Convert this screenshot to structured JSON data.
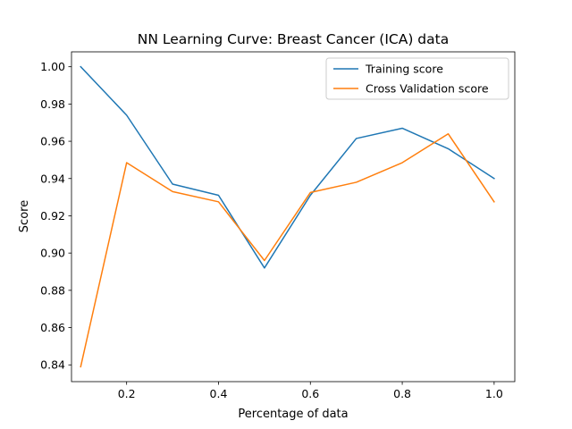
{
  "chart_data": {
    "type": "line",
    "title": "NN Learning Curve: Breast Cancer (ICA) data",
    "xlabel": "Percentage of data",
    "ylabel": "Score",
    "x": [
      0.1,
      0.2,
      0.3,
      0.4,
      0.5,
      0.6,
      0.7,
      0.8,
      0.9,
      1.0
    ],
    "xlim": [
      0.08,
      1.045
    ],
    "ylim": [
      0.831,
      1.008
    ],
    "xticks": [
      0.2,
      0.4,
      0.6,
      0.8,
      1.0
    ],
    "xtick_labels": [
      "0.2",
      "0.4",
      "0.6",
      "0.8",
      "1.0"
    ],
    "yticks": [
      0.84,
      0.86,
      0.88,
      0.9,
      0.92,
      0.94,
      0.96,
      0.98,
      1.0
    ],
    "ytick_labels": [
      "0.84",
      "0.86",
      "0.88",
      "0.90",
      "0.92",
      "0.94",
      "0.96",
      "0.98",
      "1.00"
    ],
    "grid": false,
    "legend_position": "top-right",
    "series": [
      {
        "name": "Training score",
        "color": "#1f77b4",
        "values": [
          1.0,
          0.974,
          0.937,
          0.931,
          0.892,
          0.931,
          0.9615,
          0.967,
          0.956,
          0.94
        ]
      },
      {
        "name": "Cross Validation score",
        "color": "#ff7f0e",
        "values": [
          0.839,
          0.9485,
          0.933,
          0.9275,
          0.896,
          0.9325,
          0.938,
          0.9485,
          0.964,
          0.9275
        ]
      }
    ]
  }
}
